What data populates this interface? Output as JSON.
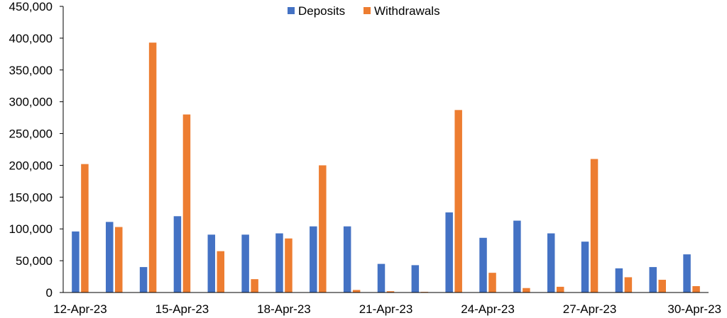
{
  "chart_data": {
    "type": "bar",
    "title": "",
    "xlabel": "",
    "ylabel": "",
    "ylim": [
      0,
      450000
    ],
    "yticks": [
      0,
      50000,
      100000,
      150000,
      200000,
      250000,
      300000,
      350000,
      400000,
      450000
    ],
    "ytick_labels": [
      "0",
      "50,000",
      "100,000",
      "150,000",
      "200,000",
      "250,000",
      "300,000",
      "350,000",
      "400,000",
      "450,000"
    ],
    "grid": false,
    "legend_position": "top",
    "categories": [
      "12-Apr-23",
      "13-Apr-23",
      "14-Apr-23",
      "15-Apr-23",
      "16-Apr-23",
      "17-Apr-23",
      "18-Apr-23",
      "19-Apr-23",
      "20-Apr-23",
      "21-Apr-23",
      "22-Apr-23",
      "23-Apr-23",
      "24-Apr-23",
      "25-Apr-23",
      "26-Apr-23",
      "27-Apr-23",
      "28-Apr-23",
      "29-Apr-23",
      "30-Apr-23"
    ],
    "shown_xtick_indices": [
      0,
      3,
      6,
      9,
      12,
      15,
      18
    ],
    "series": [
      {
        "name": "Deposits",
        "color": "#4472C4",
        "values": [
          96000,
          111000,
          40000,
          120000,
          91000,
          91000,
          93000,
          104000,
          104000,
          45000,
          43000,
          126000,
          86000,
          113000,
          93000,
          80000,
          38000,
          40000,
          60000
        ]
      },
      {
        "name": "Withdrawals",
        "color": "#ED7D31",
        "values": [
          202000,
          103000,
          393000,
          280000,
          65000,
          21000,
          85000,
          200000,
          4000,
          2000,
          1000,
          287000,
          31000,
          7000,
          9000,
          210000,
          24000,
          20000,
          10000
        ]
      }
    ]
  }
}
